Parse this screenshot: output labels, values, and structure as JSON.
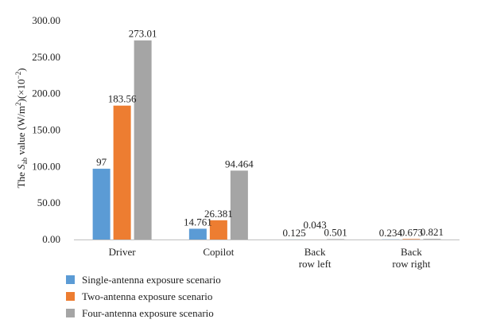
{
  "chart_data": {
    "type": "bar",
    "title": "",
    "xlabel": "",
    "ylabel_parts": {
      "pre": "The ",
      "s": "S",
      "sub": "ab",
      "mid": " value (W/m",
      "sup1": "2",
      "mid2": ")(×10",
      "sup2": "−2",
      "post": ")"
    },
    "ylim": [
      0,
      300
    ],
    "yticks": [
      "0.00",
      "50.00",
      "100.00",
      "150.00",
      "200.00",
      "250.00",
      "300.00"
    ],
    "ytick_values": [
      0,
      50,
      100,
      150,
      200,
      250,
      300
    ],
    "categories": [
      [
        "Driver"
      ],
      [
        "Copilot"
      ],
      [
        "Back",
        "row left"
      ],
      [
        "Back",
        "row right"
      ]
    ],
    "grid": false,
    "legend_position": "bottom-left",
    "series": [
      {
        "name": "Single-antenna exposure scenario",
        "color": "#5b9bd5",
        "values": [
          97,
          14.761,
          0.125,
          0.234
        ],
        "labels": [
          "97",
          "14.761",
          "0.125",
          "0.234"
        ]
      },
      {
        "name": "Two-antenna exposure scenario",
        "color": "#ed7d31",
        "values": [
          183.56,
          26.381,
          0.043,
          0.673
        ],
        "labels": [
          "183.56",
          "26.381",
          "0.043",
          "0.673"
        ]
      },
      {
        "name": "Four-antenna exposure scenario",
        "color": "#a5a5a5",
        "values": [
          273.01,
          94.464,
          0.501,
          0.821
        ],
        "labels": [
          "273.01",
          "94.464",
          "0.501",
          "0.821"
        ]
      }
    ]
  }
}
